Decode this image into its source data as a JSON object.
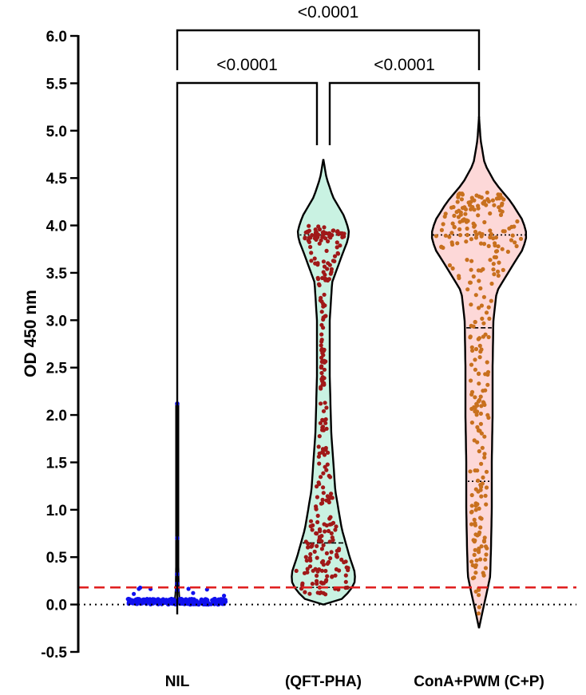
{
  "chart_data": {
    "type": "violin",
    "ylabel": "OD 450 nm",
    "xlabel": "",
    "ylim": [
      -0.5,
      6.0
    ],
    "yticks": [
      "-0.5",
      "0.0",
      "0.5",
      "1.0",
      "1.5",
      "2.0",
      "2.5",
      "3.0",
      "3.5",
      "4.0",
      "4.5",
      "5.0",
      "5.5",
      "6.0"
    ],
    "categories": [
      "NIL",
      "(QFT-PHA)",
      "ConA+PWM (C+P)"
    ],
    "reference_lines": [
      {
        "value": 0.0,
        "style": "dotted",
        "color": "#000000"
      },
      {
        "value": 0.18,
        "style": "dashed",
        "color": "#e02020"
      }
    ],
    "groups": [
      {
        "category": "NIL",
        "fill": "#ffffff",
        "point_color": "#1010ee",
        "min": 0.0,
        "max": 2.12,
        "median": 0.02,
        "notable_points": [
          2.12,
          0.7,
          0.32,
          0.22,
          0.15
        ]
      },
      {
        "category": "(QFT-PHA)",
        "fill": "#c9f2e2",
        "point_color": "#a01818",
        "min": 0.0,
        "max": 4.7,
        "median": 0.65,
        "quartiles": [
          0.18,
          3.9
        ]
      },
      {
        "category": "ConA+PWM (C+P)",
        "fill": "#fdd8d8",
        "point_color": "#c8701e",
        "min": -0.25,
        "max": 5.15,
        "median": 2.92,
        "quartiles": [
          1.3,
          3.9
        ]
      }
    ],
    "comparisons": [
      {
        "from": "NIL",
        "to": "(QFT-PHA)",
        "label": "<0.0001"
      },
      {
        "from": "(QFT-PHA)",
        "to": "ConA+PWM (C+P)",
        "label": "<0.0001"
      },
      {
        "from": "NIL",
        "to": "ConA+PWM (C+P)",
        "label": "<0.0001"
      }
    ]
  }
}
